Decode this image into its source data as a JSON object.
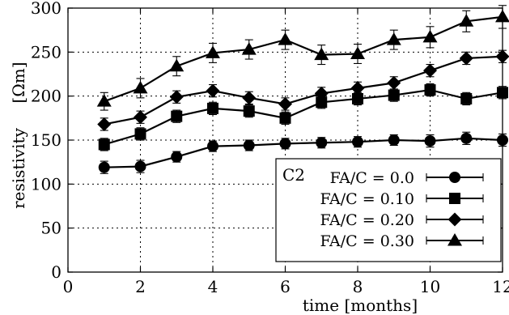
{
  "chart_data": {
    "type": "line",
    "xlabel": "time  [months]",
    "ylabel": "resistivity",
    "ylabel_unit": "[Ωm]",
    "xlim": [
      0,
      12
    ],
    "ylim": [
      0,
      300
    ],
    "xticks": [
      0,
      2,
      4,
      6,
      8,
      10,
      12
    ],
    "yticks": [
      0,
      50,
      100,
      150,
      200,
      250,
      300
    ],
    "grid": "dotted at y ticks and at x = 2, 4, 6, 8, 10",
    "legend": {
      "title": "C2",
      "placement": "bottom-right"
    },
    "x": [
      1,
      2,
      3,
      4,
      5,
      6,
      7,
      8,
      9,
      10,
      11,
      12
    ],
    "series": [
      {
        "name": "FA/C = 0.0",
        "marker": "circle",
        "values": [
          119,
          120,
          131,
          143,
          144,
          146,
          147,
          148,
          150,
          149,
          152,
          150
        ],
        "error": [
          7,
          7,
          6,
          6,
          6,
          6,
          6,
          6,
          6,
          7,
          7,
          7
        ]
      },
      {
        "name": "FA/C = 0.10",
        "marker": "square",
        "values": [
          145,
          157,
          177,
          186,
          183,
          175,
          193,
          197,
          201,
          207,
          197,
          204
        ],
        "error": [
          7,
          7,
          7,
          7,
          7,
          7,
          7,
          7,
          7,
          7,
          7,
          7
        ]
      },
      {
        "name": "FA/C = 0.20",
        "marker": "diamond",
        "values": [
          168,
          176,
          199,
          206,
          198,
          191,
          203,
          209,
          215,
          229,
          243,
          245
        ],
        "error": [
          7,
          7,
          7,
          7,
          7,
          7,
          7,
          7,
          7,
          7,
          7,
          7
        ]
      },
      {
        "name": "FA/C = 0.30",
        "marker": "triangle",
        "values": [
          194,
          209,
          234,
          249,
          253,
          264,
          247,
          248,
          264,
          267,
          285,
          290
        ],
        "error": [
          10,
          11,
          11,
          11,
          11,
          11,
          11,
          11,
          11,
          12,
          12,
          13
        ]
      }
    ]
  }
}
